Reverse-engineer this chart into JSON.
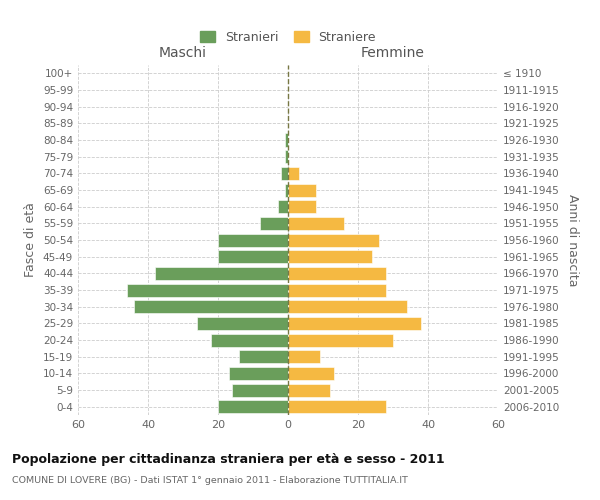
{
  "age_groups": [
    "0-4",
    "5-9",
    "10-14",
    "15-19",
    "20-24",
    "25-29",
    "30-34",
    "35-39",
    "40-44",
    "45-49",
    "50-54",
    "55-59",
    "60-64",
    "65-69",
    "70-74",
    "75-79",
    "80-84",
    "85-89",
    "90-94",
    "95-99",
    "100+"
  ],
  "birth_years": [
    "2006-2010",
    "2001-2005",
    "1996-2000",
    "1991-1995",
    "1986-1990",
    "1981-1985",
    "1976-1980",
    "1971-1975",
    "1966-1970",
    "1961-1965",
    "1956-1960",
    "1951-1955",
    "1946-1950",
    "1941-1945",
    "1936-1940",
    "1931-1935",
    "1926-1930",
    "1921-1925",
    "1916-1920",
    "1911-1915",
    "≤ 1910"
  ],
  "maschi": [
    20,
    16,
    17,
    14,
    22,
    26,
    44,
    46,
    38,
    20,
    20,
    8,
    3,
    1,
    2,
    1,
    1,
    0,
    0,
    0,
    0
  ],
  "femmine": [
    28,
    12,
    13,
    9,
    30,
    38,
    34,
    28,
    28,
    24,
    26,
    16,
    8,
    8,
    3,
    0,
    0,
    0,
    0,
    0,
    0
  ],
  "maschi_color": "#6a9e5b",
  "femmine_color": "#f5b942",
  "bg_color": "#ffffff",
  "grid_color": "#cccccc",
  "dashed_line_color": "#777744",
  "xlim": 60,
  "title": "Popolazione per cittadinanza straniera per età e sesso - 2011",
  "subtitle": "COMUNE DI LOVERE (BG) - Dati ISTAT 1° gennaio 2011 - Elaborazione TUTTITALIA.IT",
  "ylabel_left": "Fasce di età",
  "ylabel_right": "Anni di nascita",
  "header_left": "Maschi",
  "header_right": "Femmine",
  "legend_maschi": "Stranieri",
  "legend_femmine": "Straniere"
}
